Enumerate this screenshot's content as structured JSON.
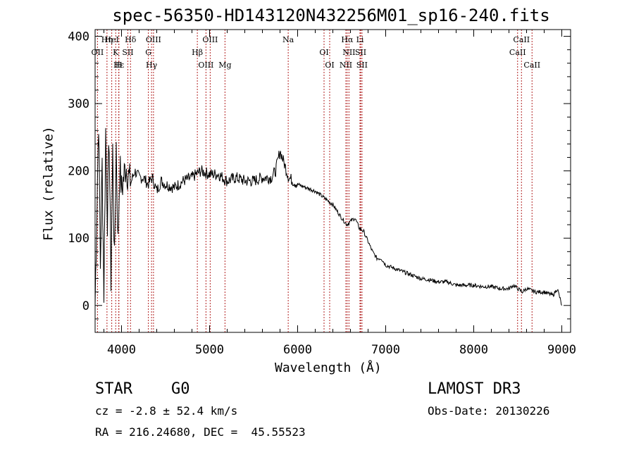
{
  "chart_data": {
    "type": "line",
    "title": "spec-56350-HD143120N432256M01_sp16-240.fits",
    "xlabel": "Wavelength (Å)",
    "ylabel": "Flux (relative)",
    "xlim": [
      3700,
      9100
    ],
    "ylim": [
      -40,
      410
    ],
    "xticks": [
      4000,
      5000,
      6000,
      7000,
      8000,
      9000
    ],
    "yticks": [
      0,
      100,
      200,
      300,
      400
    ],
    "grid": false,
    "series": [
      {
        "name": "flux",
        "x": [
          3700,
          3720,
          3740,
          3760,
          3780,
          3800,
          3820,
          3840,
          3860,
          3880,
          3900,
          3920,
          3940,
          3960,
          3980,
          4000,
          4050,
          4100,
          4150,
          4200,
          4250,
          4300,
          4350,
          4400,
          4450,
          4500,
          4600,
          4700,
          4800,
          4900,
          5000,
          5100,
          5200,
          5300,
          5400,
          5500,
          5600,
          5700,
          5750,
          5800,
          5850,
          5900,
          5950,
          6000,
          6100,
          6200,
          6300,
          6400,
          6500,
          6560,
          6600,
          6650,
          6700,
          6750,
          6800,
          6850,
          6900,
          6950,
          7000,
          7100,
          7200,
          7300,
          7400,
          7500,
          7600,
          7700,
          7800,
          7900,
          8000,
          8100,
          8200,
          8300,
          8400,
          8450,
          8500,
          8550,
          8600,
          8700,
          8800,
          8900,
          8950,
          9000
        ],
        "values": [
          0,
          140,
          280,
          60,
          210,
          20,
          260,
          130,
          250,
          40,
          230,
          60,
          240,
          90,
          210,
          170,
          210,
          180,
          200,
          190,
          190,
          180,
          190,
          170,
          185,
          180,
          175,
          185,
          190,
          200,
          195,
          195,
          185,
          190,
          185,
          185,
          190,
          190,
          200,
          230,
          210,
          190,
          185,
          180,
          175,
          170,
          160,
          150,
          130,
          120,
          125,
          130,
          115,
          110,
          95,
          80,
          70,
          70,
          60,
          55,
          50,
          45,
          40,
          38,
          35,
          35,
          30,
          30,
          30,
          28,
          28,
          25,
          25,
          30,
          25,
          20,
          25,
          20,
          20,
          15,
          25,
          0
        ]
      }
    ],
    "line_markers": [
      {
        "label": "Hδ",
        "x": 4102
      },
      {
        "label": "OII",
        "x": 3727
      },
      {
        "label": "Hε",
        "x": 3970
      },
      {
        "label": "OIII",
        "x": 4363
      },
      {
        "label": "K",
        "x": 3934
      },
      {
        "label": "H",
        "x": 3969
      },
      {
        "label": "HeI",
        "x": 3889
      },
      {
        "label": "SII",
        "x": 4072
      },
      {
        "label": "Hγ",
        "x": 4341
      },
      {
        "label": "Hη",
        "x": 3835
      },
      {
        "label": "G",
        "x": 4305
      },
      {
        "label": "OIII",
        "x": 4959
      },
      {
        "label": "OIII",
        "x": 5007
      },
      {
        "label": "Hβ",
        "x": 4861
      },
      {
        "label": "Mg",
        "x": 5175
      },
      {
        "label": "Na",
        "x": 5893
      },
      {
        "label": "OI",
        "x": 6300
      },
      {
        "label": "OI",
        "x": 6364
      },
      {
        "label": "Hα",
        "x": 6563
      },
      {
        "label": "SII",
        "x": 6716
      },
      {
        "label": "NII",
        "x": 6548
      },
      {
        "label": "Li",
        "x": 6708
      },
      {
        "label": "NII",
        "x": 6583
      },
      {
        "label": "SII",
        "x": 6731
      },
      {
        "label": "CaII",
        "x": 8542
      },
      {
        "label": "CaII",
        "x": 8498
      },
      {
        "label": "CaII",
        "x": 8662
      }
    ]
  },
  "info": {
    "class": "STAR",
    "subclass": "G0",
    "survey": "LAMOST DR3",
    "cz": "cz = -2.8 ± 52.4 km/s",
    "obs_date": "Obs-Date: 20130226",
    "radec": "RA = 216.24680, DEC =  45.55523"
  },
  "colors": {
    "line": "#000000",
    "marker": "#b22222"
  }
}
